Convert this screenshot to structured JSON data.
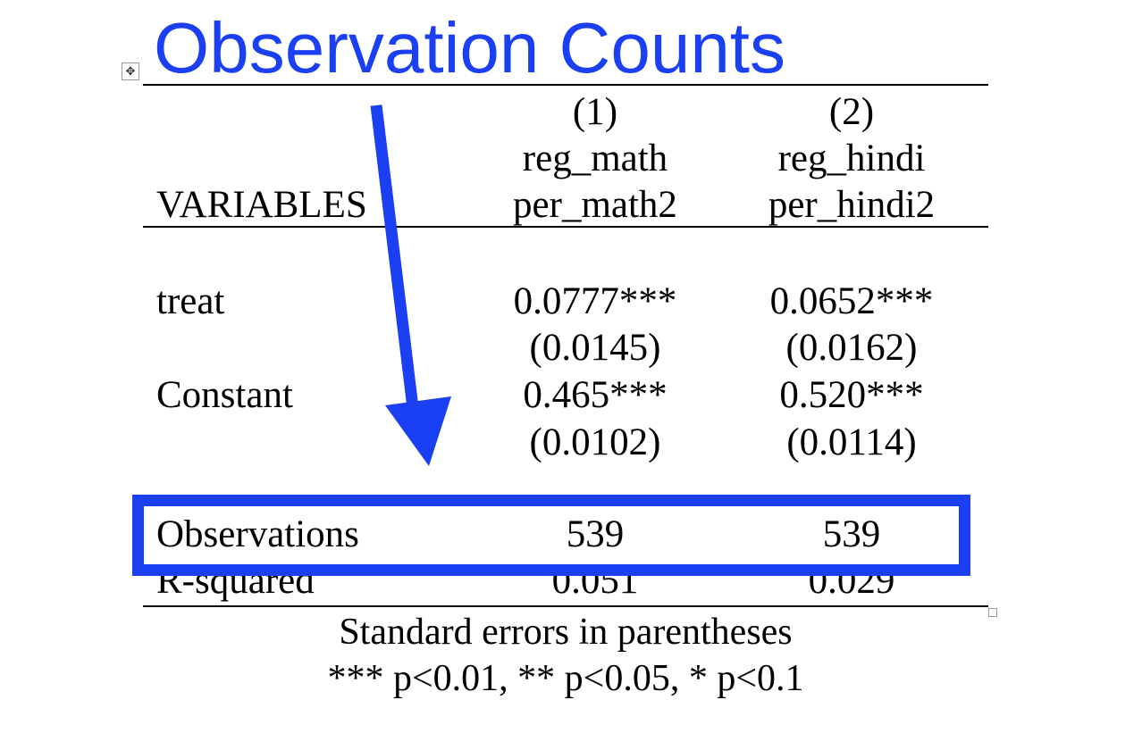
{
  "title": "Observation Counts",
  "accent_color": "#1b3ff2",
  "icons": {
    "move_handle": "move-arrows-icon",
    "resize_handle": "resize-handle-icon"
  },
  "table": {
    "columns": [
      {
        "number": "(1)",
        "depvar": "reg_math",
        "var": "per_math2"
      },
      {
        "number": "(2)",
        "depvar": "reg_hindi",
        "var": "per_hindi2"
      }
    ],
    "header_label": "VARIABLES",
    "rows": [
      {
        "label": "treat",
        "values": [
          "0.0777***",
          "0.0652***"
        ],
        "se": [
          "(0.0145)",
          "(0.0162)"
        ]
      },
      {
        "label": "Constant",
        "values": [
          "0.465***",
          "0.520***"
        ],
        "se": [
          "(0.0102)",
          "(0.0114)"
        ]
      }
    ],
    "stats": [
      {
        "label": "Observations",
        "values": [
          "539",
          "539"
        ]
      },
      {
        "label": "R-squared",
        "values": [
          "0.051",
          "0.029"
        ]
      }
    ],
    "notes": [
      "Standard errors in parentheses",
      "*** p<0.01, ** p<0.05, * p<0.1"
    ]
  }
}
